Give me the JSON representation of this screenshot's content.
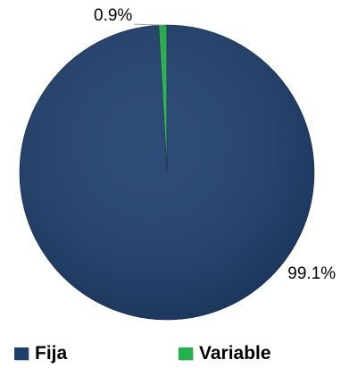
{
  "chart_data": {
    "type": "pie",
    "title": "",
    "slices": [
      {
        "name": "Fija",
        "value": 99.1,
        "label": "99.1%",
        "color": "#1f3f6e"
      },
      {
        "name": "Variable",
        "value": 0.9,
        "label": "0.9%",
        "color": "#22b14c"
      }
    ],
    "legend_placement": "bottom",
    "start_angle": "top, clockwise",
    "colors": {
      "fija": "#1f3f6e",
      "variable": "#22b14c",
      "leader_line": "#9aa0a6"
    }
  }
}
